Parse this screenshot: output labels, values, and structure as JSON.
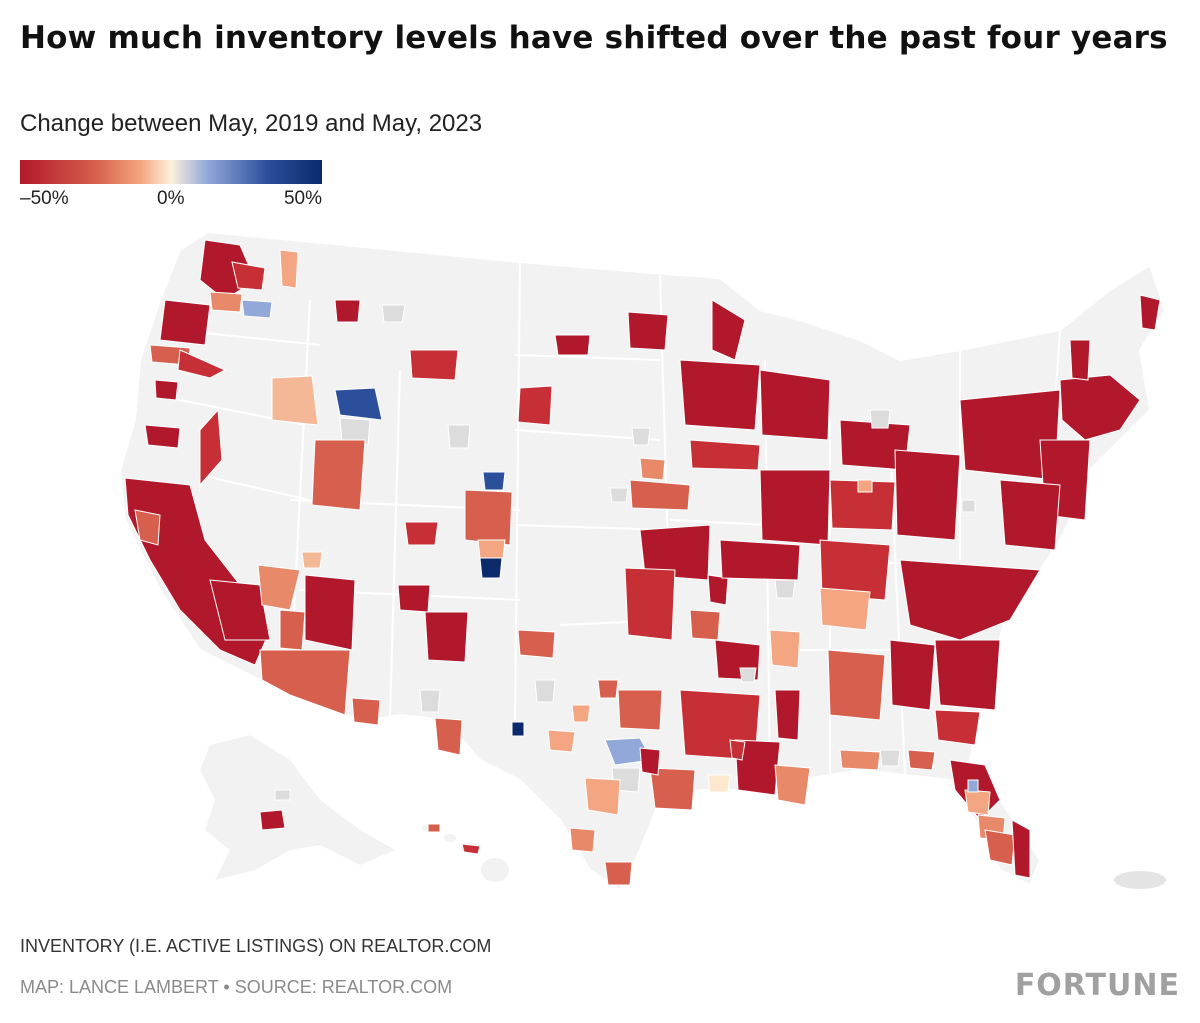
{
  "title": "How much inventory levels have shifted over the past four years",
  "subtitle": "Change between May, 2019 and May, 2023",
  "legend": {
    "min_label": "–50%",
    "mid_label": "0%",
    "max_label": "50%",
    "colors": [
      "#b2182b",
      "#d6604d",
      "#f4a582",
      "#fdf1dc",
      "#92a8d8",
      "#2c4f9c",
      "#0b2a6b"
    ]
  },
  "map": {
    "land_color": "#f2f2f2",
    "border_color": "#ffffff",
    "no_data_color": "#dcdcdc",
    "regions_shown": [
      "contiguous-us",
      "alaska",
      "hawaii",
      "puerto-rico"
    ]
  },
  "footnote": "INVENTORY (I.E. ACTIVE LISTINGS) ON REALTOR.COM",
  "credit": "MAP: LANCE LAMBERT • SOURCE: REALTOR.COM",
  "brand": "FORTUNE"
}
